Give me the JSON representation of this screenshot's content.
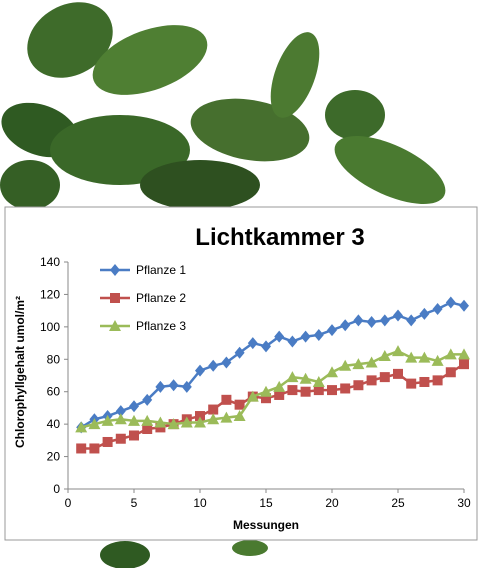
{
  "chart_data": {
    "type": "line",
    "title": "Lichtkammer 3",
    "y_label": "Chlorophyllgehalt umol/m²",
    "x_label": "Messungen",
    "x": [
      1,
      2,
      3,
      4,
      5,
      6,
      7,
      8,
      9,
      10,
      11,
      12,
      13,
      14,
      15,
      16,
      17,
      18,
      19,
      20,
      21,
      22,
      23,
      24,
      25,
      26,
      27,
      28,
      29,
      30
    ],
    "series": [
      {
        "name": "Pflanze 1",
        "color": "#4a7cc4",
        "marker": "diamond",
        "values": [
          38,
          43,
          45,
          48,
          51,
          55,
          63,
          64,
          63,
          73,
          76,
          78,
          84,
          90,
          88,
          94,
          91,
          94,
          95,
          98,
          101,
          104,
          103,
          104,
          107,
          104,
          108,
          111,
          115,
          113
        ]
      },
      {
        "name": "Pflanze 2",
        "color": "#c0504d",
        "marker": "square",
        "values": [
          25,
          25,
          29,
          31,
          33,
          37,
          38,
          40,
          43,
          45,
          49,
          55,
          52,
          57,
          56,
          58,
          61,
          60,
          61,
          61,
          62,
          64,
          67,
          69,
          71,
          65,
          66,
          67,
          72,
          77
        ]
      },
      {
        "name": "Pflanze 3",
        "color": "#9bbb59",
        "marker": "triangle",
        "values": [
          38,
          40,
          42,
          43,
          42,
          42,
          41,
          40,
          41,
          41,
          43,
          44,
          45,
          57,
          60,
          63,
          69,
          68,
          66,
          72,
          76,
          77,
          78,
          82,
          85,
          81,
          81,
          79,
          83,
          83
        ]
      }
    ],
    "xlim": [
      0,
      30
    ],
    "xticks": [
      0,
      5,
      10,
      15,
      20,
      25,
      30
    ],
    "ylim": [
      0,
      140
    ],
    "yticks": [
      0,
      20,
      40,
      60,
      80,
      100,
      120,
      140
    ],
    "grid": false,
    "legend": "upper-left"
  }
}
